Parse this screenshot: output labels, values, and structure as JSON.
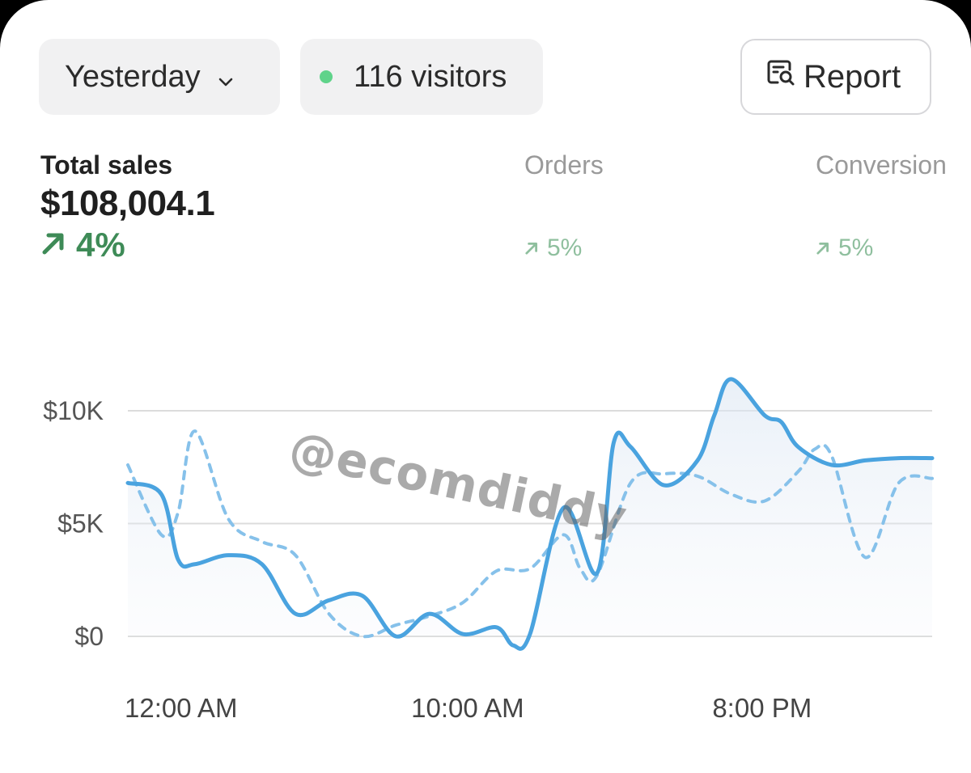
{
  "toolbar": {
    "period_label": "Yesterday",
    "visitors_label": "116 visitors",
    "visitors_dot_color": "#5fd38a",
    "report_label": "Report"
  },
  "metrics": [
    {
      "label": "Total sales",
      "value": "$108,004.1",
      "change": "4%",
      "direction": "up"
    },
    {
      "label": "Orders",
      "value": "",
      "change": "5%",
      "direction": "up"
    },
    {
      "label": "Conversion",
      "value": "",
      "change": "5%",
      "direction": "up"
    }
  ],
  "colors": {
    "accent_line": "#4aa3df",
    "comparison_line": "#86c1ea",
    "positive": "#3e8b57",
    "positive_muted": "#8fbf9e"
  },
  "watermark": "@ecomdiddy",
  "chart_data": {
    "type": "line",
    "title": "",
    "ylim": [
      -700,
      11500
    ],
    "y_ticks": [
      {
        "value": 0,
        "label": "$0"
      },
      {
        "value": 5000,
        "label": "$5K"
      },
      {
        "value": 10000,
        "label": "$10K"
      }
    ],
    "x_ticks": [
      {
        "hour": 0,
        "label": "12:00 AM"
      },
      {
        "hour": 10,
        "label": "10:00 AM"
      },
      {
        "hour": 20,
        "label": "8:00 PM"
      }
    ],
    "x_range_hours": [
      0,
      24
    ],
    "grid": true,
    "series": [
      {
        "style": "solid",
        "hours": [
          0,
          1,
          1.5,
          2,
          3,
          4,
          5,
          6,
          7,
          8,
          9,
          10,
          11,
          11.5,
          12,
          13,
          14,
          14.5,
          15,
          16,
          17,
          17.5,
          18,
          19,
          19.5,
          20,
          21,
          22,
          23,
          24
        ],
        "values": [
          6800,
          6300,
          3400,
          3200,
          3600,
          3200,
          1000,
          1600,
          1800,
          0,
          1000,
          100,
          400,
          -400,
          100,
          5700,
          2800,
          8600,
          8400,
          6700,
          7800,
          9800,
          11400,
          9800,
          9500,
          8400,
          7600,
          7800,
          7900,
          7900
        ]
      },
      {
        "style": "dashed",
        "hours": [
          0,
          1,
          1.5,
          2,
          3,
          4,
          5,
          6,
          7,
          8,
          9,
          10,
          11,
          12,
          13,
          13.5,
          14,
          15,
          16,
          17,
          18,
          19,
          20,
          20.5,
          21,
          22,
          23,
          24
        ],
        "values": [
          7600,
          4500,
          5500,
          9100,
          5200,
          4200,
          3600,
          1000,
          0,
          500,
          900,
          1500,
          2900,
          3000,
          4500,
          3000,
          2700,
          6800,
          7200,
          7100,
          6300,
          6000,
          7300,
          8300,
          8000,
          3500,
          6800,
          7000
        ]
      }
    ]
  }
}
